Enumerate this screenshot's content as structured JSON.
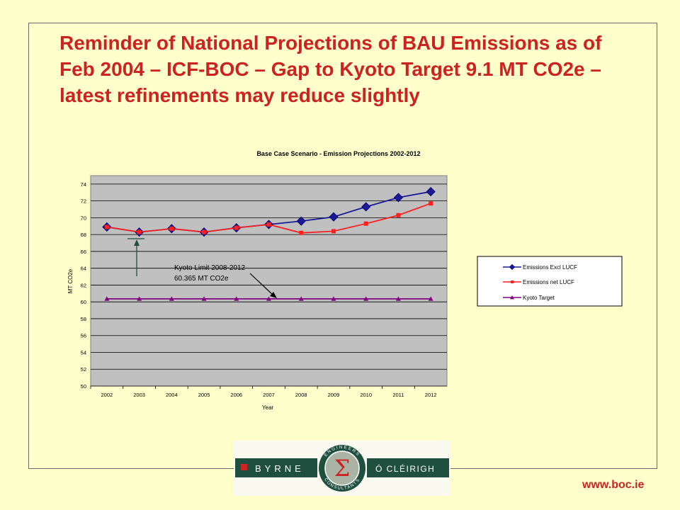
{
  "slide": {
    "title": "Reminder of National Projections of BAU Emissions as of Feb 2004 – ICF-BOC – Gap to Kyoto Target 9.1 MT CO2e – latest refinements may reduce slightly",
    "url": "www.boc.ie"
  },
  "logo": {
    "left_text": "BYRNE",
    "right_text": "Ó CLÉIRIGH",
    "arc_top": "ENGINEERS",
    "arc_bottom": "CONSULTANTS",
    "symbol": "Σ"
  },
  "colors": {
    "background": "#ffffcc",
    "title": "#cc2222",
    "plot_area": "#c0c0c0",
    "series_excl": "#1a1a99",
    "series_net": "#ff2020",
    "series_kyoto": "#800080",
    "logo_green": "#1f4f3f"
  },
  "chart_data": {
    "type": "line",
    "title": "Base Case Scenario  -  Emission Projections 2002-2012",
    "xlabel": "Year",
    "ylabel": "MT CO2e",
    "ylim": [
      50,
      75
    ],
    "yticks": [
      50,
      52,
      54,
      56,
      58,
      60,
      62,
      64,
      66,
      68,
      70,
      72,
      74
    ],
    "grid": true,
    "legend_position": "right",
    "x": [
      "2002",
      "2003",
      "2004",
      "2005",
      "2006",
      "2007",
      "2008",
      "2009",
      "2010",
      "2011",
      "2012"
    ],
    "series": [
      {
        "name": "Emissions Excl LUCF",
        "marker": "diamond",
        "values": [
          68.9,
          68.3,
          68.7,
          68.3,
          68.8,
          69.2,
          69.6,
          70.1,
          71.3,
          72.4,
          73.1
        ]
      },
      {
        "name": "Emissions net LUCF",
        "marker": "square",
        "values": [
          68.9,
          68.3,
          68.7,
          68.3,
          68.8,
          69.2,
          68.2,
          68.4,
          69.3,
          70.3,
          71.7
        ]
      },
      {
        "name": "Kyoto Target",
        "marker": "triangle",
        "values": [
          60.365,
          60.365,
          60.365,
          60.365,
          60.365,
          60.365,
          60.365,
          60.365,
          60.365,
          60.365,
          60.365
        ]
      }
    ],
    "annotations": [
      {
        "text_line1": "Kyoto Limit 2008-2012",
        "text_line2": "60.365 MT CO2e"
      }
    ]
  }
}
